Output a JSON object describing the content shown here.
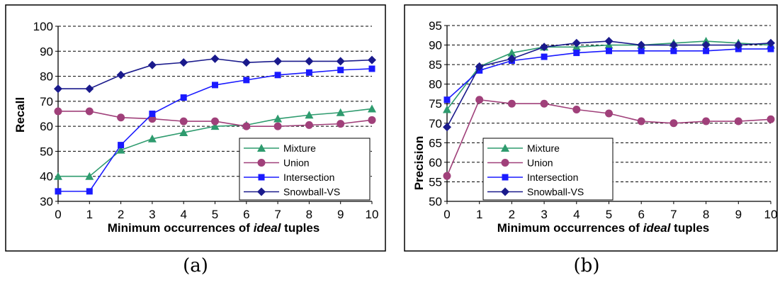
{
  "chart_data": [
    {
      "type": "line",
      "caption": "(a)",
      "xlabel": "Minimum occurrences of ideal tuples",
      "xlabel_parts": [
        "Minimum occurrences of ",
        "ideal",
        " tuples"
      ],
      "ylabel": "Recall",
      "x": [
        0,
        1,
        2,
        3,
        4,
        5,
        6,
        7,
        8,
        9,
        10
      ],
      "xlim": [
        0,
        10
      ],
      "ylim": [
        30,
        100
      ],
      "yticks": [
        30,
        40,
        50,
        60,
        70,
        80,
        90,
        100
      ],
      "grid": "horizontal dashed",
      "legend_position": "bottom-right",
      "series": [
        {
          "name": "Mixture",
          "color": "#2e9b6e",
          "marker": "triangle",
          "values": [
            40,
            40,
            50.5,
            55,
            57.5,
            60,
            60.5,
            63,
            64.5,
            65.5,
            67
          ]
        },
        {
          "name": "Union",
          "color": "#a0407a",
          "marker": "circle",
          "values": [
            66,
            66,
            63.5,
            63,
            62,
            62,
            60,
            60,
            60.5,
            61,
            62.5
          ]
        },
        {
          "name": "Intersection",
          "color": "#1a1aff",
          "marker": "square",
          "values": [
            34,
            34,
            52.5,
            65,
            71.5,
            76.5,
            78.5,
            80.5,
            81.5,
            82.5,
            83
          ]
        },
        {
          "name": "Snowball-VS",
          "color": "#1a1a8c",
          "marker": "diamond",
          "values": [
            75,
            75,
            80.5,
            84.5,
            85.5,
            87,
            85.5,
            86,
            86,
            86,
            86.5
          ]
        }
      ]
    },
    {
      "type": "line",
      "caption": "(b)",
      "xlabel": "Minimum occurrences of ideal tuples",
      "xlabel_parts": [
        "Minimum occurrences of ",
        "ideal",
        " tuples"
      ],
      "ylabel": "Precision",
      "x": [
        0,
        1,
        2,
        3,
        4,
        5,
        6,
        7,
        8,
        9,
        10
      ],
      "xlim": [
        0,
        10
      ],
      "ylim": [
        50,
        95
      ],
      "yticks": [
        50,
        55,
        60,
        65,
        70,
        75,
        80,
        85,
        90,
        95
      ],
      "grid": "horizontal dashed",
      "legend_position": "bottom-left",
      "series": [
        {
          "name": "Mixture",
          "color": "#2e9b6e",
          "marker": "triangle",
          "values": [
            73.5,
            84.5,
            88,
            89.5,
            89.5,
            90,
            90,
            90.5,
            91,
            90.5,
            90
          ]
        },
        {
          "name": "Union",
          "color": "#a0407a",
          "marker": "circle",
          "values": [
            56.5,
            76,
            75,
            75,
            73.5,
            72.5,
            70.5,
            70,
            70.5,
            70.5,
            71
          ]
        },
        {
          "name": "Intersection",
          "color": "#1a1aff",
          "marker": "square",
          "values": [
            76,
            83.5,
            86,
            87,
            88,
            88.5,
            88.5,
            88.5,
            88.5,
            89,
            89
          ]
        },
        {
          "name": "Snowball-VS",
          "color": "#1a1a8c",
          "marker": "diamond",
          "values": [
            69,
            84.5,
            86.5,
            89.5,
            90.5,
            91,
            90,
            90,
            90,
            90,
            90.5
          ]
        }
      ]
    }
  ]
}
